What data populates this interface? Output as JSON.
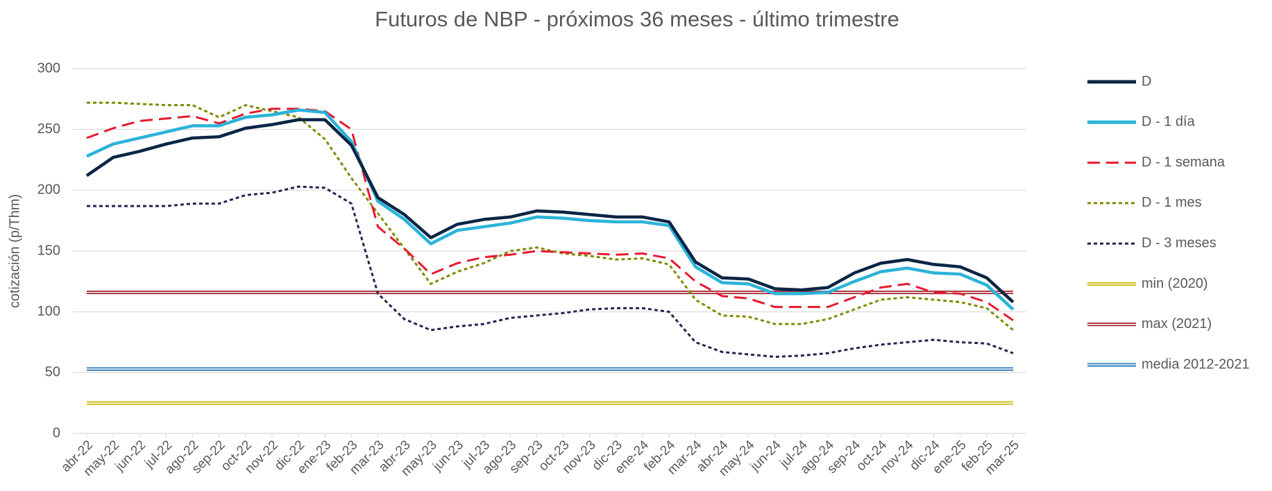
{
  "chart_data": {
    "type": "line",
    "title": "Futuros de NBP - próximos 36 meses - último trimestre",
    "y_label": "cotización (p/Thm)",
    "categories": [
      "abr-22",
      "may-22",
      "jun-22",
      "jul-22",
      "ago-22",
      "sep-22",
      "oct-22",
      "nov-22",
      "dic-22",
      "ene-23",
      "feb-23",
      "mar-23",
      "abr-23",
      "may-23",
      "jun-23",
      "jul-23",
      "ago-23",
      "sep-23",
      "oct-23",
      "nov-23",
      "dic-23",
      "ene-24",
      "feb-24",
      "mar-24",
      "abr-24",
      "may-24",
      "jun-24",
      "jul-24",
      "ago-24",
      "sep-24",
      "oct-24",
      "nov-24",
      "dic-24",
      "ene-25",
      "feb-25",
      "mar-25"
    ],
    "series": [
      {
        "name": "D",
        "color": "#0b2545",
        "values": [
          212,
          227,
          232,
          238,
          243,
          244,
          251,
          254,
          258,
          258,
          237,
          194,
          180,
          161,
          172,
          176,
          178,
          183,
          182,
          180,
          178,
          178,
          174,
          141,
          128,
          127,
          119,
          118,
          120,
          132,
          140,
          143,
          139,
          137,
          128,
          108
        ]
      },
      {
        "name": "D - 1 día",
        "color": "#2bb3d9",
        "values": [
          228,
          238,
          243,
          248,
          253,
          253,
          260,
          262,
          266,
          264,
          240,
          191,
          176,
          156,
          167,
          170,
          173,
          178,
          177,
          175,
          174,
          174,
          171,
          137,
          124,
          123,
          115,
          115,
          116,
          125,
          133,
          136,
          132,
          131,
          122,
          102
        ]
      },
      {
        "name": "D - 1 semana",
        "color": "#e8182f",
        "dash": "dashed",
        "values": [
          243,
          251,
          257,
          259,
          261,
          255,
          263,
          267,
          267,
          265,
          250,
          170,
          152,
          131,
          140,
          145,
          147,
          150,
          149,
          148,
          147,
          148,
          144,
          125,
          113,
          111,
          104,
          104,
          104,
          112,
          120,
          123,
          116,
          115,
          108,
          93
        ]
      },
      {
        "name": "D - 1 mes",
        "color": "#808a00",
        "dash": "dotted",
        "values": [
          272,
          272,
          271,
          270,
          270,
          260,
          270,
          265,
          260,
          242,
          210,
          181,
          152,
          123,
          133,
          140,
          150,
          153,
          148,
          146,
          143,
          144,
          139,
          110,
          97,
          96,
          90,
          90,
          94,
          102,
          110,
          112,
          110,
          108,
          103,
          85
        ]
      },
      {
        "name": "D - 3 meses",
        "color": "#2e1f4f",
        "dash": "dotted",
        "values": [
          187,
          187,
          187,
          187,
          189,
          189,
          196,
          198,
          203,
          202,
          189,
          115,
          94,
          85,
          88,
          90,
          95,
          97,
          99,
          102,
          103,
          103,
          100,
          75,
          67,
          65,
          63,
          64,
          66,
          70,
          73,
          75,
          77,
          75,
          74,
          66
        ]
      }
    ],
    "reference_lines": [
      {
        "name": "min (2020)",
        "color": "#c8b400",
        "value": 25
      },
      {
        "name": "max (2021)",
        "color": "#a01c2a",
        "value": 116
      },
      {
        "name": "media 2012-2021",
        "color": "#1f6fb5",
        "value": 53
      }
    ],
    "ylim": [
      0,
      300
    ],
    "yticks": [
      0,
      50,
      100,
      150,
      200,
      250,
      300
    ],
    "grid": true,
    "legend": "right"
  }
}
